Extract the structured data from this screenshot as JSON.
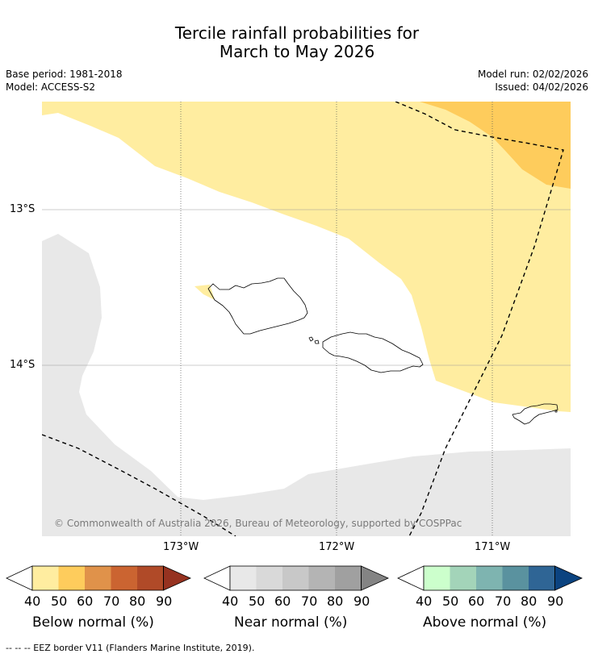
{
  "title": {
    "line1": "Tercile rainfall probabilities for",
    "line2": "March to May 2026"
  },
  "meta": {
    "base_period": "Base period: 1981-2018",
    "model": "Model: ACCESS-S2",
    "model_run": "Model run: 02/02/2026",
    "issued": "Issued: 04/02/2026"
  },
  "map": {
    "copyright": "© Commonwealth of Australia 2026, Bureau of Meteorology, supported by COSPPac",
    "lat_labels": [
      "13°S",
      "14°S"
    ],
    "lon_labels": [
      "173°W",
      "172°W",
      "171°W"
    ],
    "colors": {
      "below_40": "#ffeda0",
      "below_50": "#fecc5c",
      "near_40": "#e8e8e8",
      "coast": "#000000",
      "eez": "#000000",
      "grid": "#888888"
    }
  },
  "legends": [
    {
      "id": "below",
      "title": "Below normal (%)",
      "ticks": [
        "40",
        "50",
        "60",
        "70",
        "80",
        "90"
      ],
      "colors": [
        "#ffeda0",
        "#fecc5c",
        "#e0924a",
        "#cb6431",
        "#b04a28",
        "#963220"
      ]
    },
    {
      "id": "near",
      "title": "Near normal (%)",
      "ticks": [
        "40",
        "50",
        "60",
        "70",
        "80",
        "90"
      ],
      "colors": [
        "#e8e8e8",
        "#d9d9d9",
        "#c8c8c8",
        "#b4b4b4",
        "#a0a0a0",
        "#848484"
      ]
    },
    {
      "id": "above",
      "title": "Above normal (%)",
      "ticks": [
        "40",
        "50",
        "60",
        "70",
        "80",
        "90"
      ],
      "colors": [
        "#ccffcc",
        "#a3d4b9",
        "#7eb4b0",
        "#5a929f",
        "#2f6595",
        "#0b4380"
      ]
    }
  ],
  "footer": "--  --  -- EEZ border V11 (Flanders Marine Institute, 2019)."
}
